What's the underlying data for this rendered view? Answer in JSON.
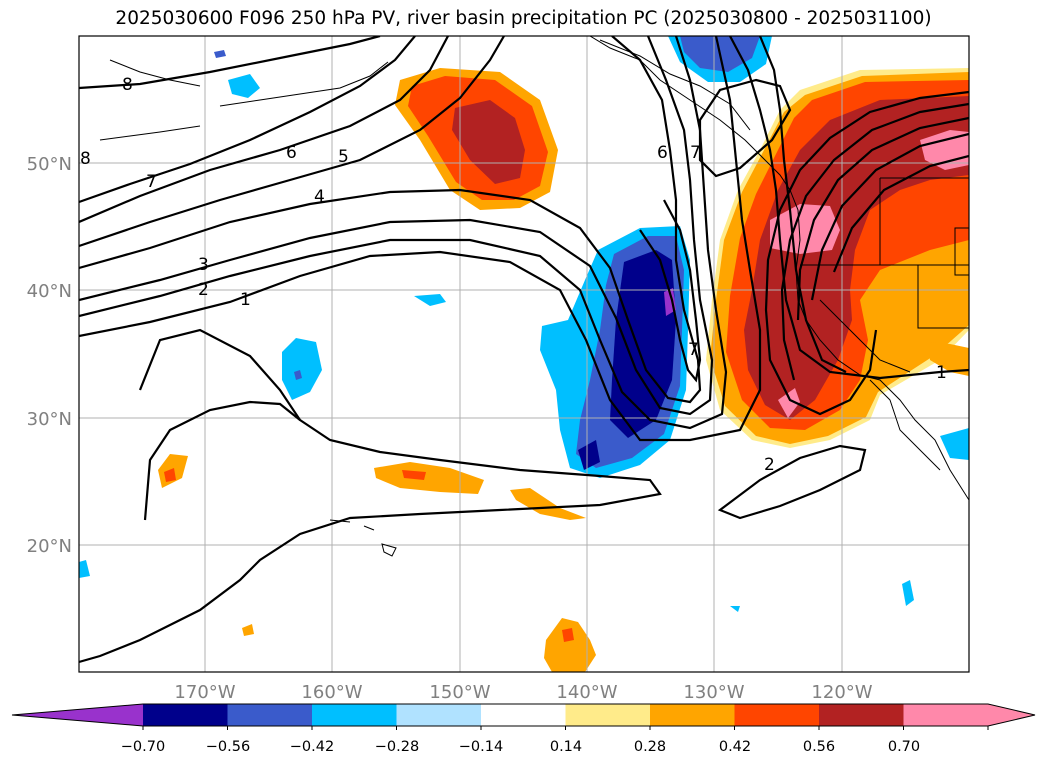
{
  "title": "2025030600 F096 250 hPa PV, river basin precipitation PC (2025030800 - 2025031100)",
  "map": {
    "lat_labels": [
      "50°N",
      "40°N",
      "30°N",
      "20°N"
    ],
    "lon_labels": [
      "170°W",
      "160°W",
      "150°W",
      "140°W",
      "130°W",
      "120°W"
    ],
    "contour_labels": [
      "8",
      "8",
      "7",
      "6",
      "5",
      "4",
      "3",
      "2",
      "1",
      "6",
      "7",
      "7",
      "2",
      "1"
    ]
  },
  "colorbar": {
    "tick_labels": [
      "−0.70",
      "−0.56",
      "−0.42",
      "−0.28",
      "−0.14",
      "0.14",
      "0.28",
      "0.42",
      "0.56",
      "0.70"
    ],
    "colors": [
      "#9932CC",
      "#00008B",
      "#3A5BCB",
      "#00BFFF",
      "#B0E2FF",
      "#FFFFFF",
      "#FFEB8A",
      "#FFA500",
      "#FF4500",
      "#B22222",
      "#FF88AA",
      "#FF88AA"
    ]
  }
}
